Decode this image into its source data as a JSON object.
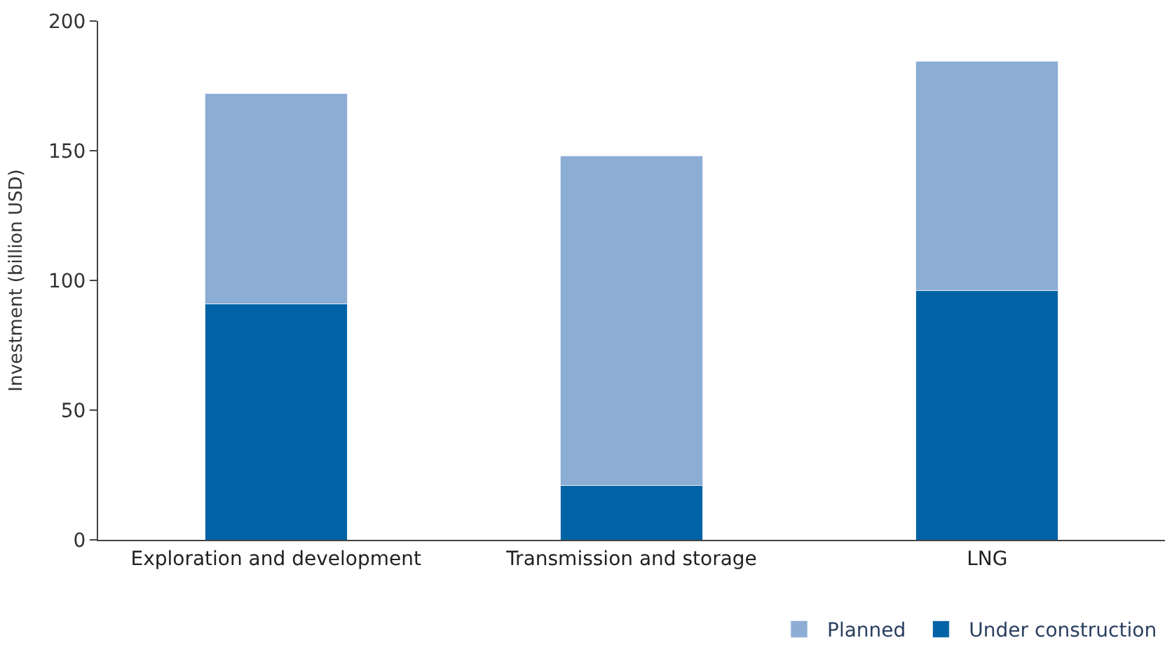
{
  "chart_data": {
    "type": "bar",
    "stacked": true,
    "ylabel": "Investment (billion USD)",
    "categories": [
      "Exploration and development",
      "Transmission and storage",
      "LNG"
    ],
    "series": [
      {
        "name": "Under construction",
        "color": "#0063a6",
        "values": [
          91,
          21,
          96
        ]
      },
      {
        "name": "Planned",
        "color": "#8cadd4",
        "values": [
          81,
          127,
          88.5
        ]
      }
    ],
    "ylim": [
      0,
      200
    ],
    "yticks": [
      0,
      50,
      100,
      150,
      200
    ],
    "legend": "bottom right"
  }
}
